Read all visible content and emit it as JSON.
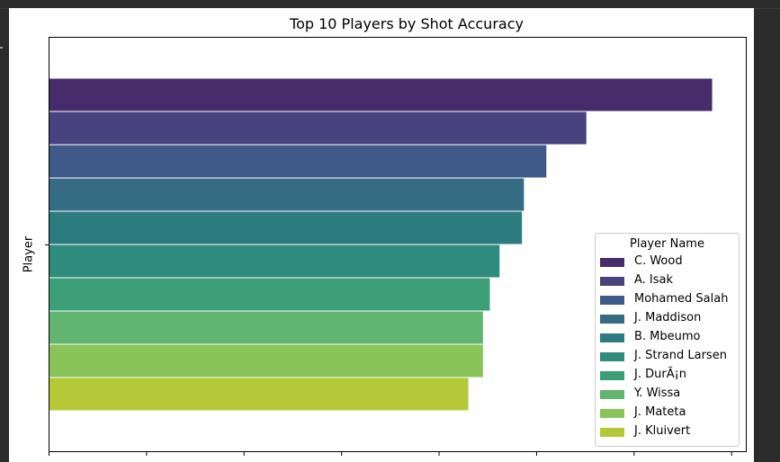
{
  "chart_data": {
    "type": "bar",
    "orientation": "horizontal",
    "title": "Top 10 Players by Shot Accuracy",
    "xlabel": "",
    "ylabel": "Player",
    "legend_title": "Player Name",
    "legend_position": "lower-right",
    "xlim": [
      0,
      71.5
    ],
    "xticks_labeled": false,
    "categories": [
      "C. Wood",
      "A. Isak",
      "Mohamed Salah",
      "J. Maddison",
      "B. Mbeumo",
      "J. Strand Larsen",
      "J. DurÃ¡n",
      "Y. Wissa",
      "J. Mateta",
      "J. Kluivert"
    ],
    "values": [
      68.0,
      55.1,
      51.0,
      48.7,
      48.5,
      46.2,
      45.2,
      44.5,
      44.5,
      43.0
    ],
    "colors": [
      "#472c6b",
      "#48437f",
      "#3f5a89",
      "#366b84",
      "#2b7b7f",
      "#2f8c7c",
      "#3c9e77",
      "#62b570",
      "#88c45a",
      "#b5c837"
    ],
    "grid": false
  }
}
